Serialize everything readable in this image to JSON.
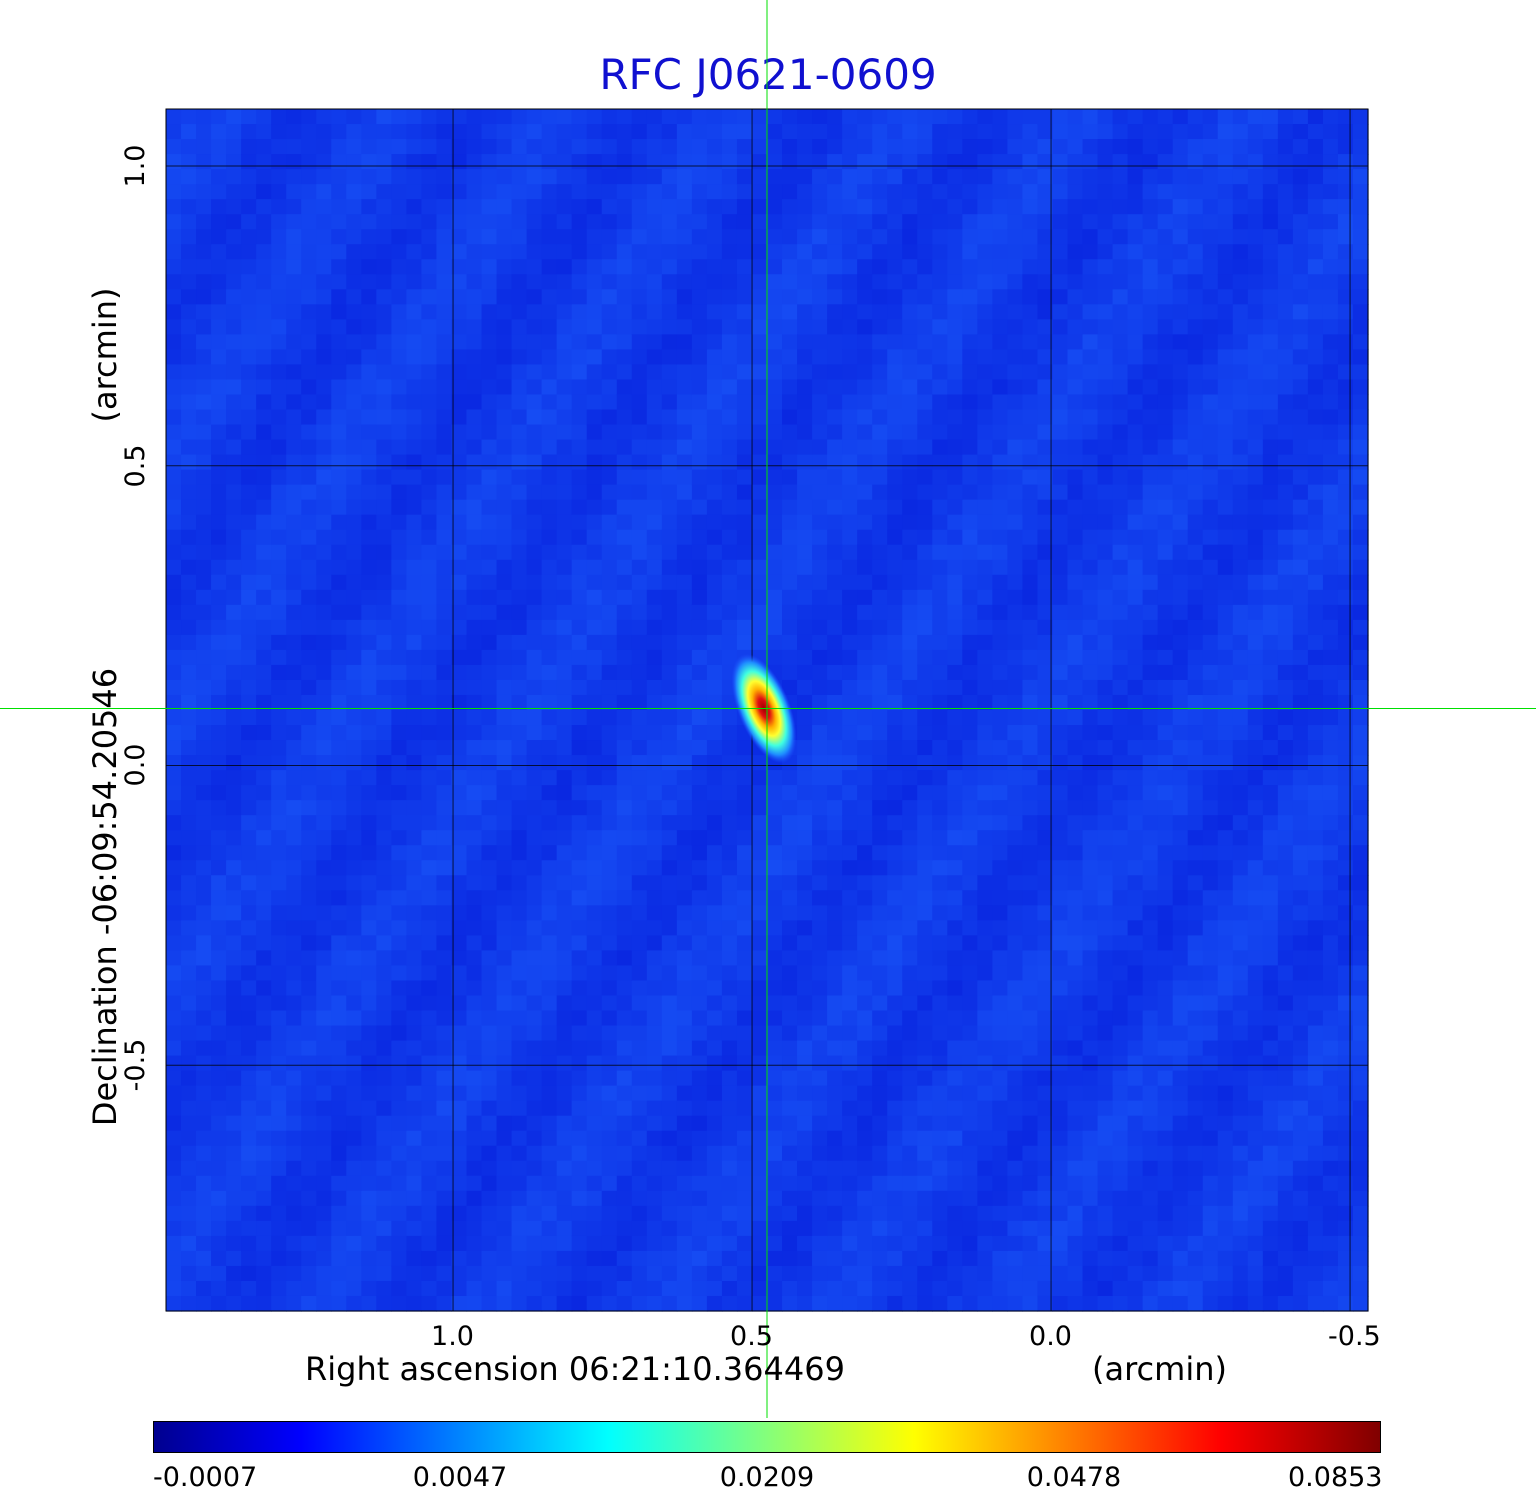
{
  "chart_data": {
    "type": "heatmap",
    "title": "RFC J0621-0609",
    "xlabel": "Right ascension  06:21:10.364469",
    "xunit": "(arcmin)",
    "ylabel": "Declination  -06:09:54.20546",
    "yunit": "(arcmin)",
    "xticks": [
      "1.0",
      "0.5",
      "0.0",
      "-0.5"
    ],
    "yticks": [
      "1.0",
      "0.5",
      "0.0",
      "-0.5"
    ],
    "xtick_values": [
      1.0,
      0.5,
      0.0,
      -0.5
    ],
    "ytick_values": [
      1.0,
      0.5,
      0.0,
      -0.5
    ],
    "xlim": [
      1.48,
      -0.53
    ],
    "ylim": [
      -0.91,
      1.095
    ],
    "grid": true,
    "colormap": "jet",
    "colorbar": {
      "ticks": [
        "-0.0007",
        "0.0047",
        "0.0209",
        "0.0478",
        "0.0853"
      ],
      "min": -0.0007,
      "max": 0.0853
    },
    "source": {
      "x": 0.48,
      "y": 0.095,
      "peak": 0.0853,
      "label_position": "center"
    },
    "crosshair": {
      "x": 0.475,
      "y": 0.095,
      "color": "#00e000"
    }
  }
}
